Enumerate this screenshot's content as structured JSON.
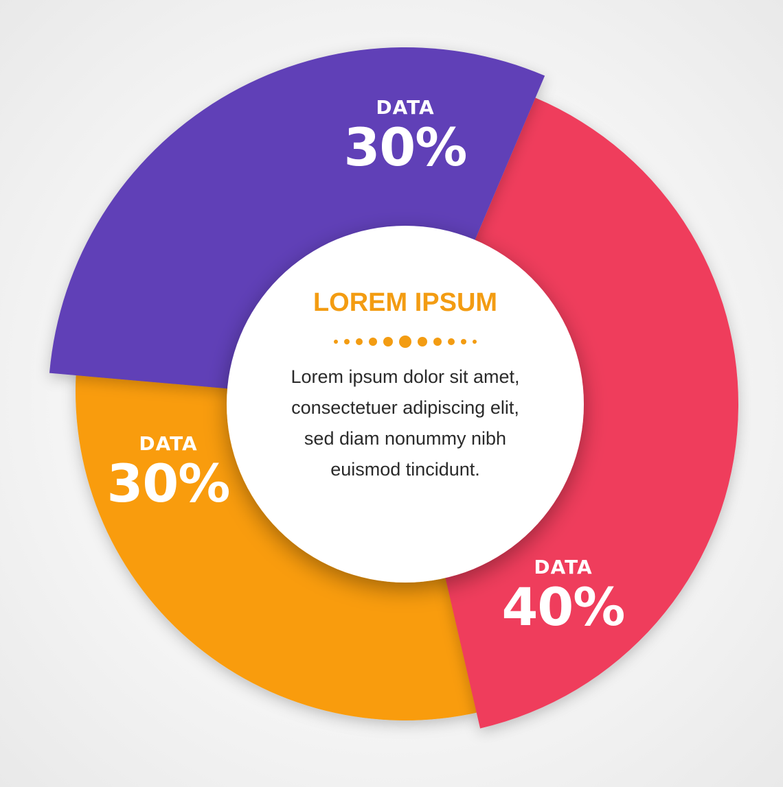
{
  "chart_data": {
    "type": "pie",
    "variant": "donut",
    "slices": [
      {
        "caption": "DATA",
        "label": "30%",
        "value": 30,
        "color": "#603fb7"
      },
      {
        "caption": "DATA",
        "label": "40%",
        "value": 40,
        "color": "#ef3c5c"
      },
      {
        "caption": "DATA",
        "label": "30%",
        "value": 30,
        "color": "#f99c08"
      }
    ]
  },
  "center": {
    "title": "LOREM IPSUM",
    "title_color": "#f39c12",
    "body": "Lorem ipsum dolor sit amet, consectetuer adipiscing elit, sed diam nonummy nibh euismod tincidunt."
  }
}
